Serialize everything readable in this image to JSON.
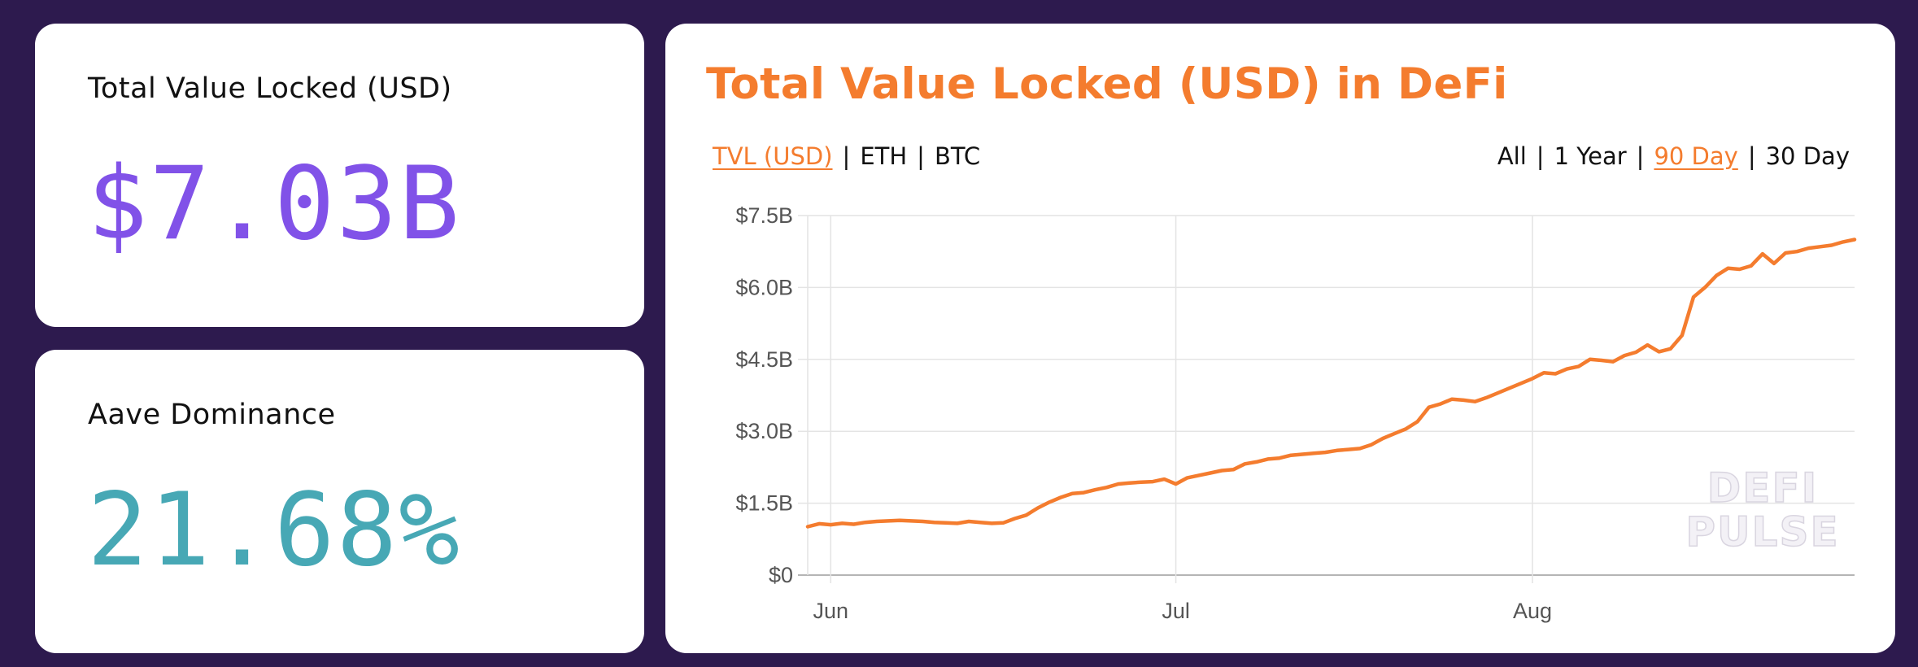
{
  "stats": {
    "tvl": {
      "label": "Total Value Locked (USD)",
      "value": "$7.03B"
    },
    "dominance": {
      "label": "Aave Dominance",
      "value": "21.68%"
    }
  },
  "chart_panel": {
    "title": "Total Value Locked (USD) in DeFi",
    "metric_options": [
      {
        "label": "TVL (USD)",
        "active": true
      },
      {
        "label": "ETH",
        "active": false
      },
      {
        "label": "BTC",
        "active": false
      }
    ],
    "range_options": [
      {
        "label": "All",
        "active": false
      },
      {
        "label": "1 Year",
        "active": false
      },
      {
        "label": "90 Day",
        "active": true
      },
      {
        "label": "30 Day",
        "active": false
      }
    ],
    "separator": "|",
    "watermark": [
      "DEFI",
      "PULSE"
    ]
  },
  "colors": {
    "background": "#2d1a4e",
    "accent": "#f47c2e",
    "tvl_value": "#8152e8",
    "dominance_value": "#47a8b5"
  },
  "chart_data": {
    "type": "line",
    "title": "Total Value Locked (USD) in DeFi",
    "ylim": [
      0,
      7.5
    ],
    "y_ticks": [
      0,
      1.5,
      3.0,
      4.5,
      6.0,
      7.5
    ],
    "y_tick_labels": [
      "$0",
      "$1.5B",
      "$3.0B",
      "$4.5B",
      "$6.0B",
      "$7.5B"
    ],
    "x_ticks": [
      "Jun",
      "Jul",
      "Aug"
    ],
    "xlim": [
      "2020-05-30",
      "2020-08-29"
    ],
    "x_tick_dates": [
      "2020-06-01",
      "2020-07-01",
      "2020-08-01"
    ],
    "grid": true,
    "series": [
      {
        "color": "#f47c2e",
        "x": [
          "2020-05-30",
          "2020-05-31",
          "2020-06-01",
          "2020-06-02",
          "2020-06-03",
          "2020-06-04",
          "2020-06-05",
          "2020-06-06",
          "2020-06-07",
          "2020-06-08",
          "2020-06-09",
          "2020-06-10",
          "2020-06-11",
          "2020-06-12",
          "2020-06-13",
          "2020-06-14",
          "2020-06-15",
          "2020-06-16",
          "2020-06-17",
          "2020-06-18",
          "2020-06-19",
          "2020-06-20",
          "2020-06-21",
          "2020-06-22",
          "2020-06-23",
          "2020-06-24",
          "2020-06-25",
          "2020-06-26",
          "2020-06-27",
          "2020-06-28",
          "2020-06-29",
          "2020-06-30",
          "2020-07-01",
          "2020-07-02",
          "2020-07-03",
          "2020-07-04",
          "2020-07-05",
          "2020-07-06",
          "2020-07-07",
          "2020-07-08",
          "2020-07-09",
          "2020-07-10",
          "2020-07-11",
          "2020-07-12",
          "2020-07-13",
          "2020-07-14",
          "2020-07-15",
          "2020-07-16",
          "2020-07-17",
          "2020-07-18",
          "2020-07-19",
          "2020-07-20",
          "2020-07-21",
          "2020-07-22",
          "2020-07-23",
          "2020-07-24",
          "2020-07-25",
          "2020-07-26",
          "2020-07-27",
          "2020-07-28",
          "2020-07-29",
          "2020-07-30",
          "2020-07-31",
          "2020-08-01",
          "2020-08-02",
          "2020-08-03",
          "2020-08-04",
          "2020-08-05",
          "2020-08-06",
          "2020-08-07",
          "2020-08-08",
          "2020-08-09",
          "2020-08-10",
          "2020-08-11",
          "2020-08-12",
          "2020-08-13",
          "2020-08-14",
          "2020-08-15",
          "2020-08-16",
          "2020-08-17",
          "2020-08-18",
          "2020-08-19",
          "2020-08-20",
          "2020-08-21",
          "2020-08-22",
          "2020-08-23",
          "2020-08-24",
          "2020-08-25",
          "2020-08-26",
          "2020-08-27",
          "2020-08-28",
          "2020-08-29"
        ],
        "values": [
          1.01,
          1.07,
          1.05,
          1.08,
          1.06,
          1.1,
          1.12,
          1.13,
          1.14,
          1.13,
          1.12,
          1.1,
          1.09,
          1.08,
          1.12,
          1.1,
          1.08,
          1.09,
          1.18,
          1.25,
          1.4,
          1.52,
          1.62,
          1.7,
          1.72,
          1.78,
          1.83,
          1.9,
          1.92,
          1.94,
          1.95,
          2.0,
          1.9,
          2.03,
          2.08,
          2.13,
          2.18,
          2.2,
          2.32,
          2.36,
          2.42,
          2.44,
          2.5,
          2.52,
          2.54,
          2.56,
          2.6,
          2.62,
          2.64,
          2.72,
          2.85,
          2.95,
          3.05,
          3.2,
          3.5,
          3.57,
          3.67,
          3.65,
          3.62,
          3.7,
          3.8,
          3.9,
          4.0,
          4.1,
          4.22,
          4.2,
          4.3,
          4.35,
          4.5,
          4.48,
          4.45,
          4.58,
          4.65,
          4.8,
          4.66,
          4.72,
          5.0,
          5.8,
          6.0,
          6.25,
          6.4,
          6.38,
          6.45,
          6.7,
          6.5,
          6.72,
          6.75,
          6.82,
          6.85,
          6.88,
          6.95,
          7.0
        ]
      }
    ]
  }
}
